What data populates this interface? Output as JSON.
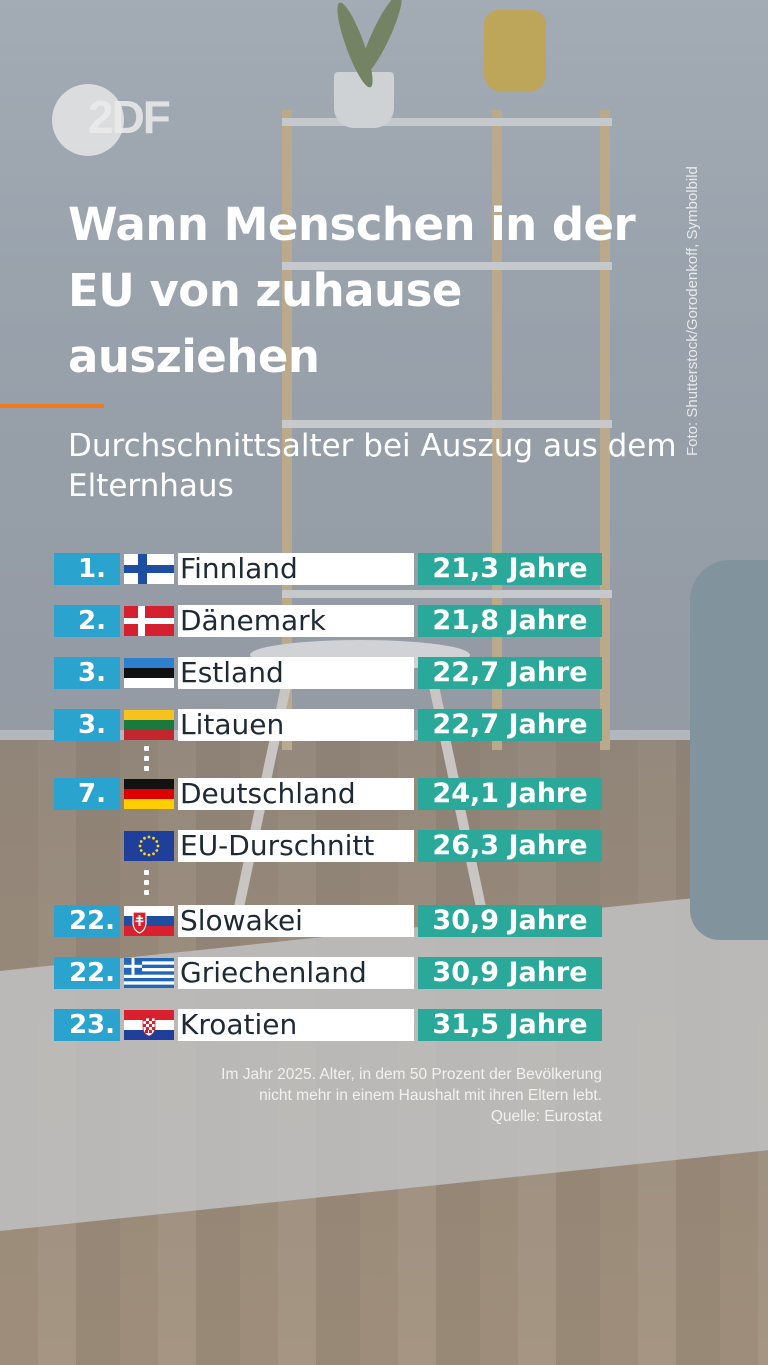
{
  "header": {
    "logo_text": "2DF",
    "photo_credit": "Foto: Shutterstock/Gorodenkoff, Symbolbild",
    "title": "Wann Menschen in der EU von zuhause ausziehen",
    "subtitle": "Durchschnittsalter bei Auszug aus dem Elternhaus"
  },
  "chart_data": {
    "type": "table",
    "title": "Wann Menschen in der EU von zuhause ausziehen",
    "subtitle": "Durchschnittsalter bei Auszug aus dem Elternhaus",
    "columns": [
      "rank",
      "country",
      "value"
    ],
    "rows": [
      {
        "rank": "1.",
        "country": "Finnland",
        "value": 21.3,
        "value_label": "21,3 Jahre",
        "flag": "finland-flag"
      },
      {
        "rank": "2.",
        "country": "Dänemark",
        "value": 21.8,
        "value_label": "21,8 Jahre",
        "flag": "denmark-flag"
      },
      {
        "rank": "3.",
        "country": "Estland",
        "value": 22.7,
        "value_label": "22,7 Jahre",
        "flag": "estonia-flag"
      },
      {
        "rank": "3.",
        "country": "Litauen",
        "value": 22.7,
        "value_label": "22,7 Jahre",
        "flag": "lithuania-flag"
      },
      {
        "rank": "7.",
        "country": "Deutschland",
        "value": 24.1,
        "value_label": "24,1 Jahre",
        "flag": "germany-flag"
      },
      {
        "rank": "",
        "country": "EU-Durschnitt",
        "value": 26.3,
        "value_label": "26,3 Jahre",
        "flag": "eu-flag"
      },
      {
        "rank": "22.",
        "country": "Slowakei",
        "value": 30.9,
        "value_label": "30,9 Jahre",
        "flag": "slovakia-flag"
      },
      {
        "rank": "22.",
        "country": "Griechenland",
        "value": 30.9,
        "value_label": "30,9 Jahre",
        "flag": "greece-flag"
      },
      {
        "rank": "23.",
        "country": "Kroatien",
        "value": 31.5,
        "value_label": "31,5 Jahre",
        "flag": "croatia-flag"
      }
    ],
    "colors": {
      "rank": "#2aa4cf",
      "value": "#2aa89a",
      "name": "#ffffff",
      "accent": "#f07a1a"
    }
  },
  "footnote": {
    "line1": "Im Jahr 2025. Alter, in dem 50 Prozent der Bevölkerung",
    "line2": "nicht mehr in einem Haushalt mit ihren Eltern lebt.",
    "line3": "Quelle: Eurostat"
  }
}
